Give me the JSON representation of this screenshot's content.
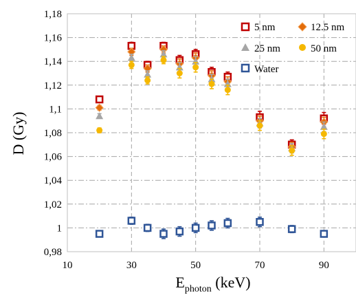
{
  "chart_data": {
    "type": "scatter",
    "xlabel_main": "E",
    "xlabel_sub": "photon",
    "xlabel_unit": " (keV)",
    "ylabel": "D (Gy)",
    "xlim": [
      10,
      100
    ],
    "ylim": [
      0.98,
      1.18
    ],
    "xticks": [
      10,
      30,
      50,
      70,
      90
    ],
    "yticks": [
      0.98,
      1.0,
      1.02,
      1.04,
      1.06,
      1.08,
      1.1,
      1.12,
      1.14,
      1.16,
      1.18
    ],
    "ytick_labels": [
      "0,98",
      "1",
      "1,02",
      "1,04",
      "1,06",
      "1,08",
      "1,1",
      "1,12",
      "1,14",
      "1,16",
      "1,18"
    ],
    "xtick_labels": [
      "10",
      "30",
      "50",
      "70",
      "90"
    ],
    "grid": "dash-dot",
    "legend_position": "top-right",
    "x": [
      20,
      30,
      35,
      40,
      45,
      50,
      55,
      60,
      70,
      80,
      90
    ],
    "series": [
      {
        "name": "5 nm",
        "marker": "square-open",
        "color": "#c00000",
        "values": [
          1.108,
          1.153,
          1.137,
          1.153,
          1.141,
          1.146,
          1.131,
          1.127,
          1.093,
          1.07,
          1.092
        ],
        "errors": [
          0.002,
          0.003,
          0.003,
          0.003,
          0.004,
          0.004,
          0.004,
          0.004,
          0.005,
          0.004,
          0.005
        ]
      },
      {
        "name": "12.5 nm",
        "marker": "diamond",
        "color": "#e36c09",
        "values": [
          1.101,
          1.148,
          1.134,
          1.15,
          1.138,
          1.143,
          1.128,
          1.123,
          1.09,
          1.068,
          1.089
        ],
        "errors": [
          0.002,
          0.003,
          0.003,
          0.003,
          0.004,
          0.004,
          0.004,
          0.004,
          0.004,
          0.004,
          0.004
        ]
      },
      {
        "name": "25 nm",
        "marker": "triangle",
        "color": "#a6a6a6",
        "values": [
          1.094,
          1.143,
          1.129,
          1.146,
          1.135,
          1.14,
          1.125,
          1.121,
          1.088,
          1.067,
          1.085
        ],
        "errors": [
          0.002,
          0.003,
          0.003,
          0.003,
          0.004,
          0.004,
          0.004,
          0.004,
          0.004,
          0.004,
          0.004
        ]
      },
      {
        "name": "50 nm",
        "marker": "circle",
        "color": "#f5b800",
        "values": [
          1.082,
          1.137,
          1.124,
          1.141,
          1.13,
          1.135,
          1.121,
          1.116,
          1.086,
          1.065,
          1.079
        ],
        "errors": [
          0.002,
          0.003,
          0.003,
          0.003,
          0.004,
          0.004,
          0.004,
          0.004,
          0.004,
          0.004,
          0.004
        ]
      },
      {
        "name": "Water",
        "marker": "square-open",
        "color": "#2f5597",
        "values": [
          0.995,
          1.006,
          1.0,
          0.995,
          0.997,
          1.0,
          1.002,
          1.004,
          1.005,
          0.999,
          0.995
        ],
        "errors": [
          0.002,
          0.003,
          0.003,
          0.004,
          0.004,
          0.004,
          0.004,
          0.004,
          0.004,
          0.003,
          0.002
        ]
      }
    ]
  }
}
